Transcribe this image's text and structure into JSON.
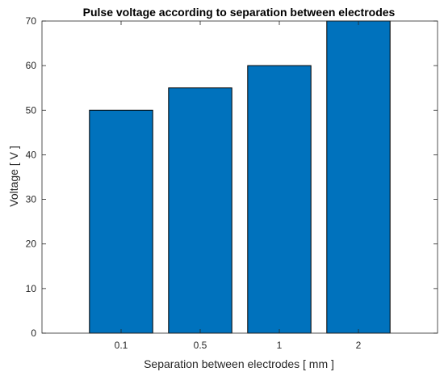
{
  "chart_data": {
    "type": "bar",
    "title": "Pulse voltage according to separation between electrodes",
    "xlabel": "Separation between electrodes [ mm ]",
    "ylabel": "Voltage [ V ]",
    "categories": [
      "0.1",
      "0.5",
      "1",
      "2"
    ],
    "values": [
      50,
      55,
      60,
      70
    ],
    "ylim": [
      0,
      70
    ],
    "yticks": [
      0,
      10,
      20,
      30,
      40,
      50,
      60,
      70
    ],
    "grid": false,
    "bar_color": "#0072bd",
    "bar_edge_color": "#000000"
  }
}
